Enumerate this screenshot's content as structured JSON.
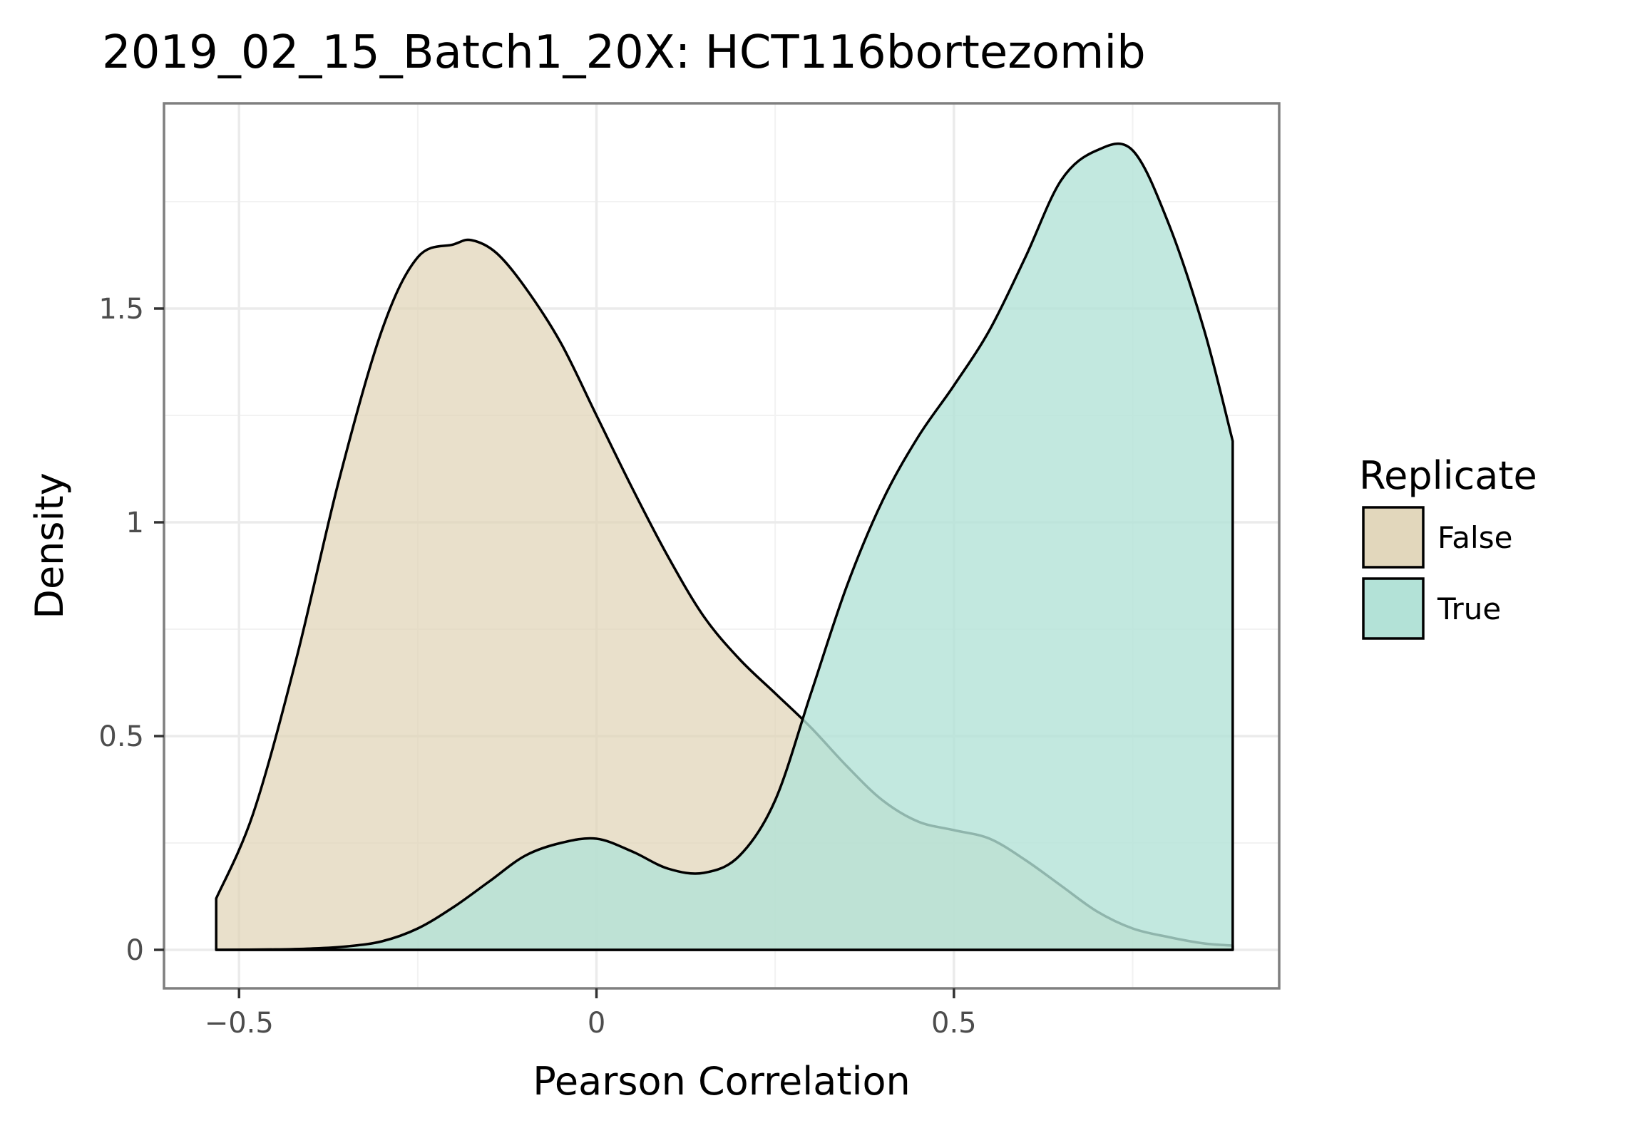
{
  "chart_data": {
    "type": "area",
    "subtype": "density",
    "title": "2019_02_15_Batch1_20X: HCT116bortezomib",
    "xlabel": "Pearson Correlation",
    "ylabel": "Density",
    "xlim": [
      -0.605,
      0.955
    ],
    "ylim": [
      -0.09,
      1.98
    ],
    "x_ticks": [
      -0.5,
      0,
      0.5
    ],
    "x_tick_labels": [
      "−0.5",
      "0",
      "0.5"
    ],
    "y_ticks": [
      0,
      0.5,
      1,
      1.5
    ],
    "y_tick_labels": [
      "0",
      "0.5",
      "1",
      "1.5"
    ],
    "grid": true,
    "legend_title": "Replicate",
    "legend_position": "right",
    "series": [
      {
        "name": "False",
        "color": "#dfd3b5",
        "opacity": 0.7,
        "x": [
          -0.532,
          -0.48,
          -0.42,
          -0.36,
          -0.3,
          -0.25,
          -0.2,
          -0.175,
          -0.14,
          -0.1,
          -0.05,
          0.0,
          0.05,
          0.1,
          0.15,
          0.2,
          0.25,
          0.3,
          0.35,
          0.4,
          0.45,
          0.5,
          0.55,
          0.6,
          0.65,
          0.7,
          0.75,
          0.8,
          0.85,
          0.89
        ],
        "values": [
          0.12,
          0.32,
          0.68,
          1.1,
          1.45,
          1.62,
          1.65,
          1.66,
          1.63,
          1.55,
          1.42,
          1.25,
          1.08,
          0.92,
          0.78,
          0.68,
          0.6,
          0.52,
          0.43,
          0.35,
          0.3,
          0.28,
          0.26,
          0.21,
          0.15,
          0.09,
          0.05,
          0.03,
          0.015,
          0.01
        ]
      },
      {
        "name": "True",
        "color": "#b3e2d7",
        "opacity": 0.8,
        "x": [
          -0.532,
          -0.45,
          -0.4,
          -0.35,
          -0.3,
          -0.25,
          -0.2,
          -0.15,
          -0.1,
          -0.05,
          0.0,
          0.05,
          0.1,
          0.15,
          0.2,
          0.25,
          0.3,
          0.35,
          0.4,
          0.45,
          0.5,
          0.55,
          0.6,
          0.65,
          0.7,
          0.75,
          0.8,
          0.85,
          0.89
        ],
        "values": [
          0.0,
          0.001,
          0.003,
          0.008,
          0.02,
          0.05,
          0.1,
          0.16,
          0.22,
          0.25,
          0.26,
          0.23,
          0.19,
          0.18,
          0.22,
          0.35,
          0.6,
          0.85,
          1.05,
          1.2,
          1.32,
          1.45,
          1.62,
          1.8,
          1.87,
          1.87,
          1.7,
          1.45,
          1.19
        ]
      }
    ]
  }
}
